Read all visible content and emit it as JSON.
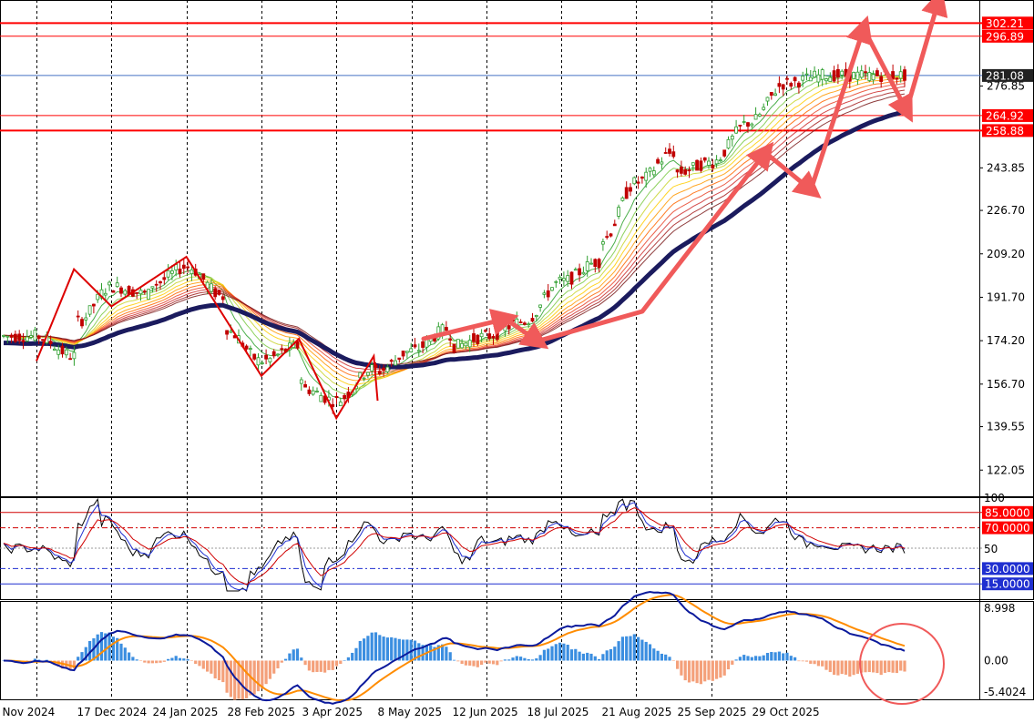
{
  "window": {
    "title": ""
  },
  "colors": {
    "background": "#ffffff",
    "axis": "#000000",
    "grid": "#000000",
    "resistance": "#ff0000",
    "current_price": "#4472c4",
    "bull_candle": "#2e9e2e",
    "bear_candle": "#c00000",
    "trend_arrow": "#f05a5a",
    "zigzag": "#dd0000",
    "slow_ma": "#1b1b5e",
    "rsi_fast": "#000000",
    "rsi_slow": "#1f2fd0",
    "rsi_signal": "#d00000",
    "macd_line": "#0b1a9c",
    "signal_line": "#ff8c00",
    "hist_pos": "#3b8ee0",
    "hist_neg": "#f4a07a",
    "circle": "#f05a5a"
  },
  "chart_data": [
    {
      "type": "candlestick",
      "panel": "price",
      "ylim": [
        111.5,
        311.5
      ],
      "y_ticks": [
        "122.05",
        "139.55",
        "156.70",
        "174.20",
        "191.70",
        "209.20",
        "226.70",
        "243.85",
        "276.85"
      ],
      "price_labels": [
        {
          "label": "302.21",
          "value": 302.21,
          "style": "red-box"
        },
        {
          "label": "296.89",
          "value": 296.89,
          "style": "red-box"
        },
        {
          "label": "281.08",
          "value": 281.08,
          "style": "dark-box"
        },
        {
          "label": "264.92",
          "value": 264.92,
          "style": "red-box"
        },
        {
          "label": "258.88",
          "value": 258.88,
          "style": "red-box"
        }
      ],
      "x_labels": [
        "Nov 2024",
        "17 Dec 2024",
        "24 Jan 2025",
        "28 Feb 2025",
        "3 Apr 2025",
        "8 May 2025",
        "12 Jun 2025",
        "18 Jul 2025",
        "21 Aug 2025",
        "25 Sep 2025",
        "29 Oct 2025"
      ],
      "close_path": [
        [
          "Nov 2024",
          176
        ],
        [
          "Nov 2024+",
          168
        ],
        [
          "17 Dec 2024-",
          182
        ],
        [
          "17 Dec 2024",
          196
        ],
        [
          "17 Dec 2024+",
          193
        ],
        [
          "24 Jan 2025-",
          197
        ],
        [
          "24 Jan 2025",
          204
        ],
        [
          "24 Jan 2025+",
          192
        ],
        [
          "28 Feb 2025-",
          178
        ],
        [
          "28 Feb 2025",
          166
        ],
        [
          "28 Feb 2025+",
          172
        ],
        [
          "3 Apr 2025-",
          155
        ],
        [
          "3 Apr 2025",
          150
        ],
        [
          "3 Apr 2025+",
          163
        ],
        [
          "8 May 2025-",
          162
        ],
        [
          "8 May 2025",
          170
        ],
        [
          "8 May 2025+",
          179
        ],
        [
          "12 Jun 2025-",
          172
        ],
        [
          "12 Jun 2025",
          176
        ],
        [
          "12 Jun 2025+",
          182
        ],
        [
          "18 Jul 2025",
          198
        ],
        [
          "18 Jul 2025+",
          206
        ],
        [
          "21 Aug 2025-",
          215
        ],
        [
          "21 Aug 2025",
          238
        ],
        [
          "21 Aug 2025+",
          250
        ],
        [
          "25 Sep 2025-",
          242
        ],
        [
          "25 Sep 2025",
          246
        ],
        [
          "25 Sep 2025+",
          262
        ],
        [
          "29 Oct 2025",
          278
        ],
        [
          "29 Oct 2025+",
          281.08
        ]
      ],
      "zigzag": [
        [
          "Nov 2024",
          166
        ],
        [
          "Nov 2024+",
          203
        ],
        [
          "17 Dec 2024",
          188
        ],
        [
          "24 Jan 2025",
          208
        ],
        [
          "28 Feb 2025",
          160
        ],
        [
          "28 Feb 2025+",
          175
        ],
        [
          "3 Apr 2025",
          143
        ],
        [
          "3 Apr 2025+",
          168
        ],
        [
          "8 May 2025-",
          150
        ]
      ]
    },
    {
      "type": "line",
      "panel": "rsi",
      "ylim": [
        0,
        100
      ],
      "y_ticks": [
        "100",
        "50"
      ],
      "levels": [
        {
          "label": "85.0000",
          "value": 85,
          "color": "#d00000",
          "box": "red"
        },
        {
          "label": "70.0000",
          "value": 70,
          "color": "#d00000",
          "box": "red"
        },
        {
          "label": "30.0000",
          "value": 30,
          "color": "#1f2fd0",
          "box": "blue"
        },
        {
          "label": "15.0000",
          "value": 15,
          "color": "#1f2fd0",
          "box": "blue"
        }
      ]
    },
    {
      "type": "bar",
      "panel": "macd",
      "ylim": [
        -5.4024,
        8.998
      ],
      "y_ticks": [
        "8.998",
        "0.00",
        "-5.4024"
      ]
    }
  ]
}
